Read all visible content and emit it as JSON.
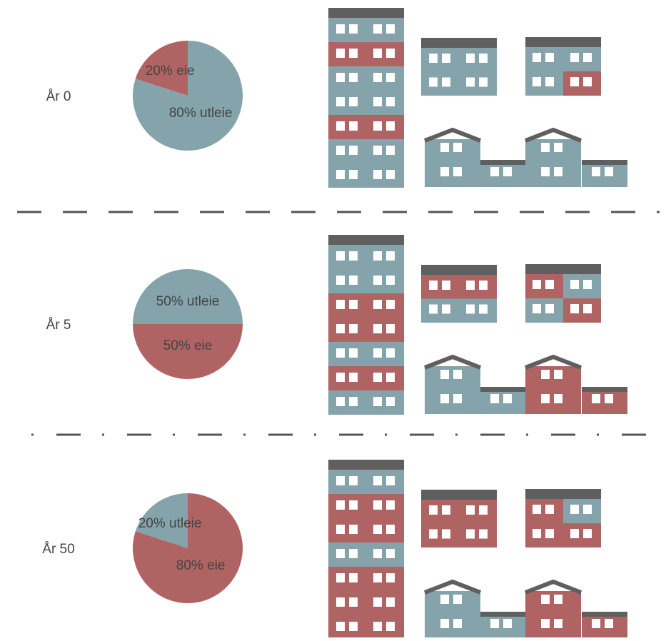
{
  "chart_data": [
    {
      "type": "pie",
      "title": "År 0",
      "values": [
        80,
        20
      ],
      "value_labels": [
        "80% utleie",
        "20% eie"
      ],
      "colors": [
        "#85a3aa",
        "#b06363"
      ],
      "startangle": 0
    },
    {
      "type": "pie",
      "title": "År 5",
      "values": [
        50,
        50
      ],
      "value_labels": [
        "50% utleie",
        "50% eie"
      ],
      "colors": [
        "#85a3aa",
        "#b06363"
      ],
      "startangle": -90
    },
    {
      "type": "pie",
      "title": "År 50",
      "values": [
        80,
        20
      ],
      "value_labels": [
        "80% eie",
        "20% utleie"
      ],
      "colors": [
        "#b06363",
        "#85a3aa"
      ],
      "startangle": 0
    }
  ]
}
